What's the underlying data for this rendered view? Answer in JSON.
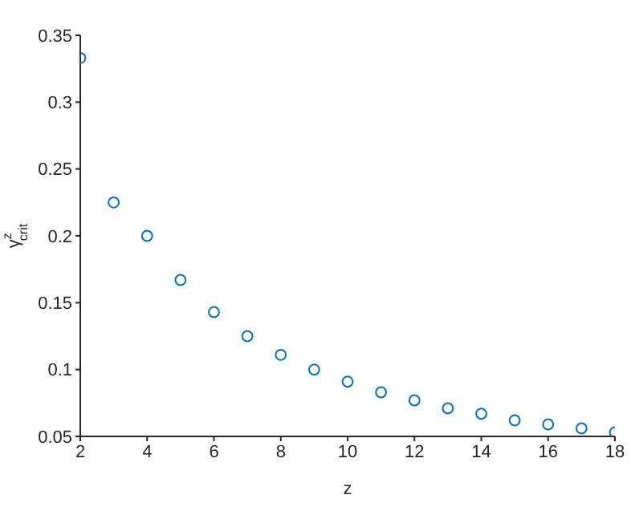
{
  "chart_data": {
    "type": "scatter",
    "xlabel": "z",
    "ylabel": "γ$^{z}$$_{crit}$",
    "x": [
      2,
      3,
      4,
      5,
      6,
      7,
      8,
      9,
      10,
      11,
      12,
      13,
      14,
      15,
      16,
      17,
      18
    ],
    "values": [
      0.333,
      0.225,
      0.2,
      0.167,
      0.143,
      0.125,
      0.111,
      0.1,
      0.091,
      0.083,
      0.077,
      0.071,
      0.067,
      0.062,
      0.059,
      0.056,
      0.053
    ],
    "color": "#0072bd",
    "marker": "circle",
    "xlim": [
      2,
      18
    ],
    "xticks": [
      2,
      4,
      6,
      8,
      10,
      12,
      14,
      16,
      18
    ],
    "ylim": [
      0.05,
      0.35
    ],
    "yticks": [
      0.05,
      0.1,
      0.15,
      0.2,
      0.25,
      0.3,
      0.35
    ]
  }
}
